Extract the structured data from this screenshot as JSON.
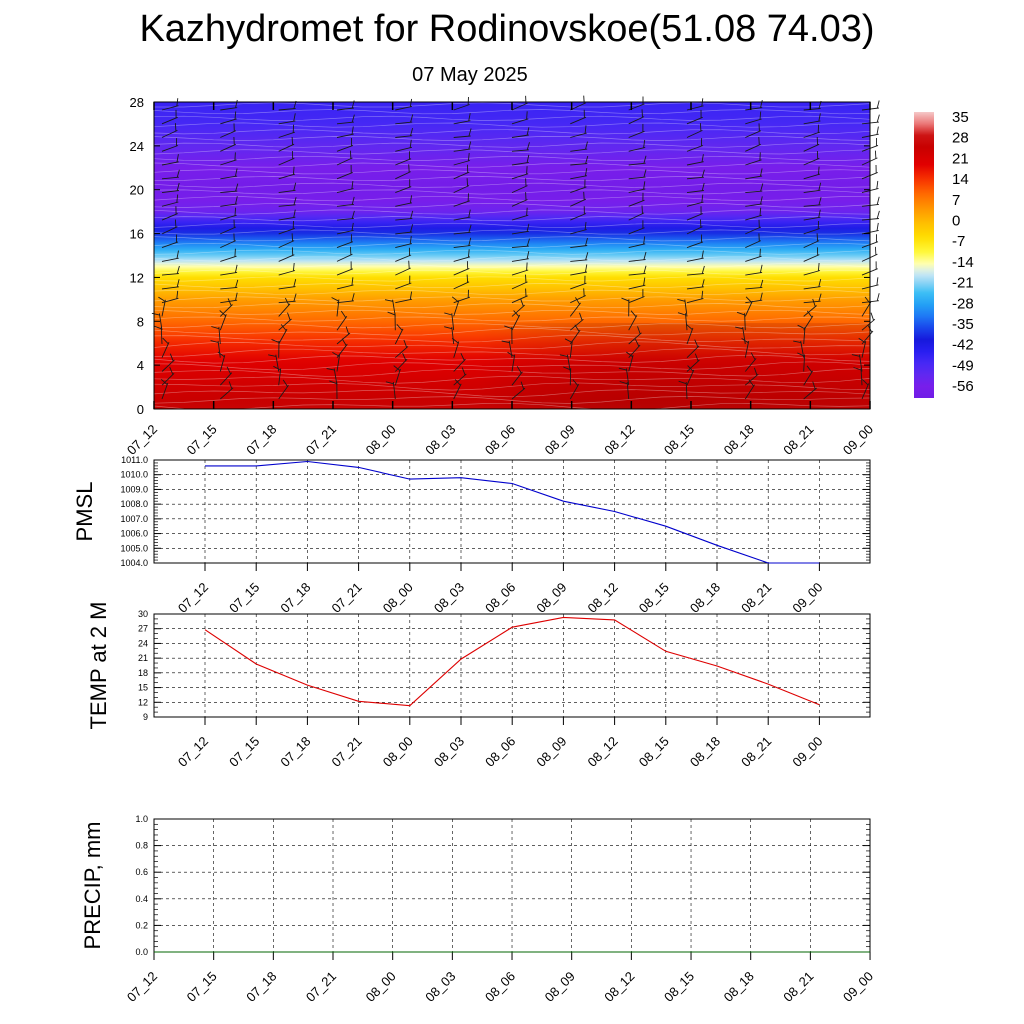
{
  "title": "Kazhydromet for Rodinovskoe(51.08 74.03)",
  "subtitle": "07 May 2025",
  "colors": {
    "pmsl_line": "#0000cc",
    "temp_line": "#dd0000",
    "precip_line": "#006600"
  },
  "chart_data": [
    {
      "type": "heatmap",
      "name": "cross-section",
      "x_labels": [
        "07_12",
        "07_15",
        "07_18",
        "07_21",
        "08_00",
        "08_03",
        "08_06",
        "08_09",
        "08_12",
        "08_15",
        "08_18",
        "08_21",
        "09_00"
      ],
      "yticks": [
        0,
        4,
        8,
        12,
        16,
        20,
        24,
        28
      ],
      "ylim": [
        0,
        28
      ],
      "colorbar_labels": [
        "35",
        "28",
        "21",
        "14",
        "7",
        "0",
        "-7",
        "-14",
        "-21",
        "-28",
        "-35",
        "-42",
        "-49",
        "-56"
      ],
      "colorbar_range": [
        -60,
        38
      ],
      "profile": [
        [
          0,
          27
        ],
        [
          2,
          24
        ],
        [
          4,
          21
        ],
        [
          6,
          16
        ],
        [
          8,
          10
        ],
        [
          10,
          4
        ],
        [
          12,
          -5
        ],
        [
          13,
          -14
        ],
        [
          14,
          -22
        ],
        [
          15,
          -30
        ],
        [
          16,
          -38
        ],
        [
          17,
          -46
        ],
        [
          18,
          -54
        ],
        [
          20,
          -58
        ],
        [
          22,
          -56
        ],
        [
          24,
          -52
        ],
        [
          26,
          -48
        ],
        [
          28,
          -46
        ]
      ]
    },
    {
      "type": "line",
      "name": "pmsl",
      "ylabel": "PMSL",
      "x": [
        "07_12",
        "07_15",
        "07_18",
        "07_21",
        "08_00",
        "08_03",
        "08_06",
        "08_09",
        "08_12",
        "08_15",
        "08_18",
        "08_21",
        "09_00"
      ],
      "values": [
        1010.6,
        1010.6,
        1010.9,
        1010.5,
        1009.7,
        1009.8,
        1009.4,
        1008.2,
        1007.5,
        1006.5,
        1005.2,
        1004.0,
        1004.0
      ],
      "ylim": [
        1004.0,
        1011.0
      ],
      "yticks": [
        "1004.0",
        "1005.0",
        "1006.0",
        "1007.0",
        "1008.0",
        "1009.0",
        "1010.0",
        "1011.0"
      ]
    },
    {
      "type": "line",
      "name": "temp",
      "ylabel": "TEMP at 2 M",
      "x": [
        "07_12",
        "07_15",
        "07_18",
        "07_21",
        "08_00",
        "08_03",
        "08_06",
        "08_09",
        "08_12",
        "08_15",
        "08_18",
        "08_21",
        "09_00"
      ],
      "values": [
        26.8,
        19.8,
        15.5,
        12.2,
        11.3,
        20.8,
        27.3,
        29.3,
        28.8,
        22.4,
        19.4,
        15.7,
        11.5
      ],
      "ylim": [
        9,
        30
      ],
      "yticks": [
        "9",
        "12",
        "15",
        "18",
        "21",
        "24",
        "27",
        "30"
      ]
    },
    {
      "type": "line",
      "name": "precip",
      "ylabel": "PRECIP, mm",
      "x_labels": [
        "07_12",
        "07_15",
        "07_18",
        "07_21",
        "08_00",
        "08_03",
        "08_06",
        "08_09",
        "08_12",
        "08_15",
        "08_18",
        "08_21",
        "09_00"
      ],
      "values": [
        0,
        0,
        0,
        0,
        0,
        0,
        0,
        0,
        0,
        0,
        0,
        0,
        0
      ],
      "ylim": [
        0,
        1.0
      ],
      "yticks": [
        "0.0",
        "0.2",
        "0.4",
        "0.6",
        "0.8",
        "1.0"
      ]
    }
  ]
}
